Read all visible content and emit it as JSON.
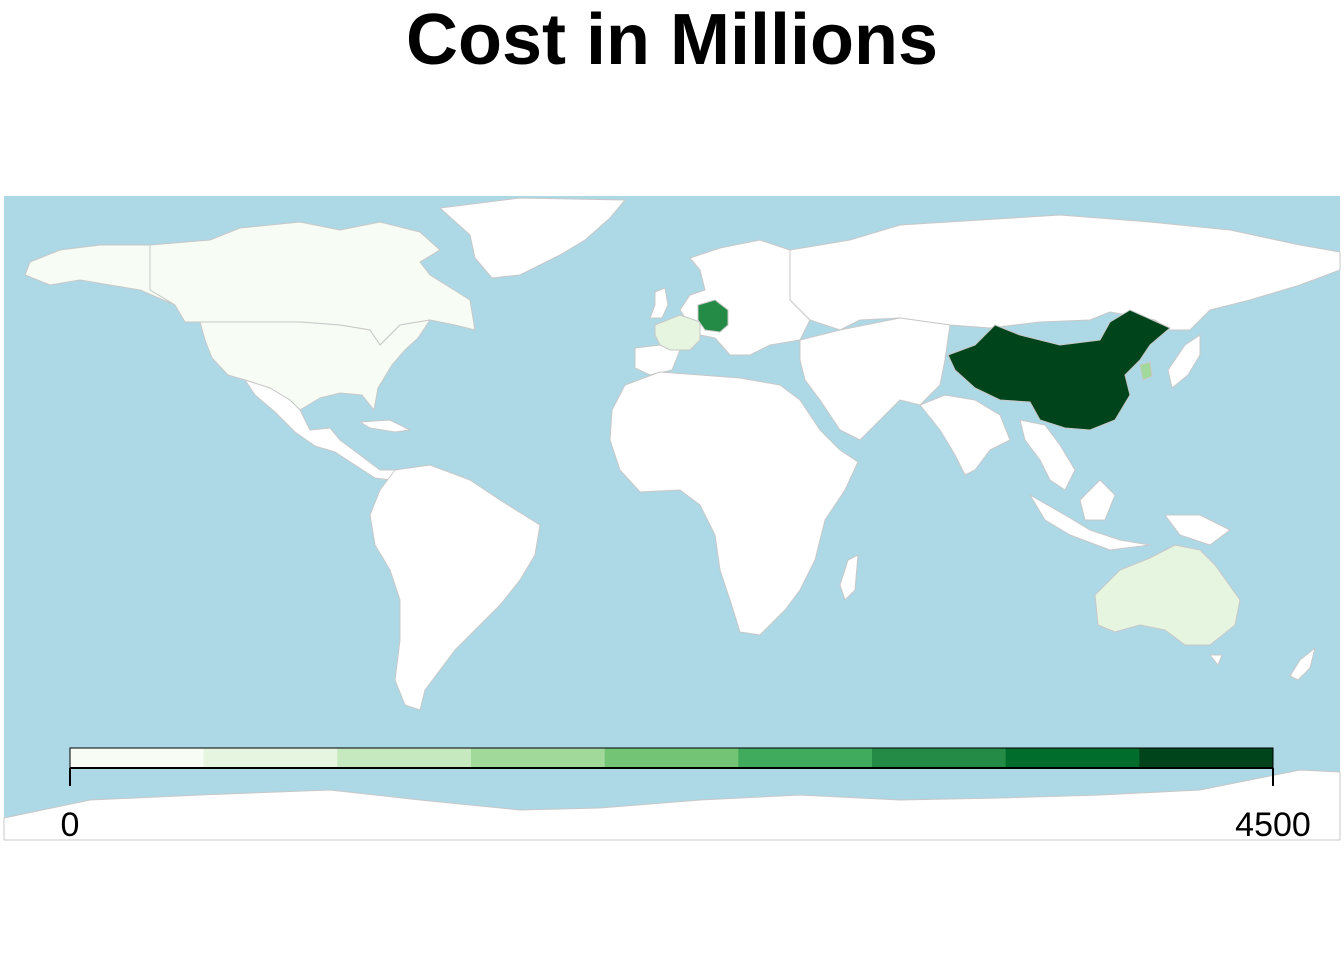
{
  "title": "Cost in Millions",
  "map": {
    "projection": "equirectangular",
    "colors": {
      "ocean": "#add8e6",
      "land_default": "#ffffff",
      "border": "#c8c8c8"
    },
    "regions": [
      {
        "name": "United States",
        "bin": 0
      },
      {
        "name": "Canada",
        "bin": 0
      },
      {
        "name": "France",
        "bin": 1
      },
      {
        "name": "Germany",
        "bin": 6
      },
      {
        "name": "China",
        "bin": 8
      },
      {
        "name": "South Korea",
        "bin": 3
      },
      {
        "name": "Australia",
        "bin": 1
      }
    ]
  },
  "legend": {
    "min_label": "0",
    "max_label": "4500",
    "range": [
      0,
      4500
    ],
    "palette": [
      "#f7fcf5",
      "#e5f5e0",
      "#c7e9c0",
      "#a1d99b",
      "#74c476",
      "#41ab5d",
      "#238b45",
      "#006d2c",
      "#00441b"
    ]
  }
}
